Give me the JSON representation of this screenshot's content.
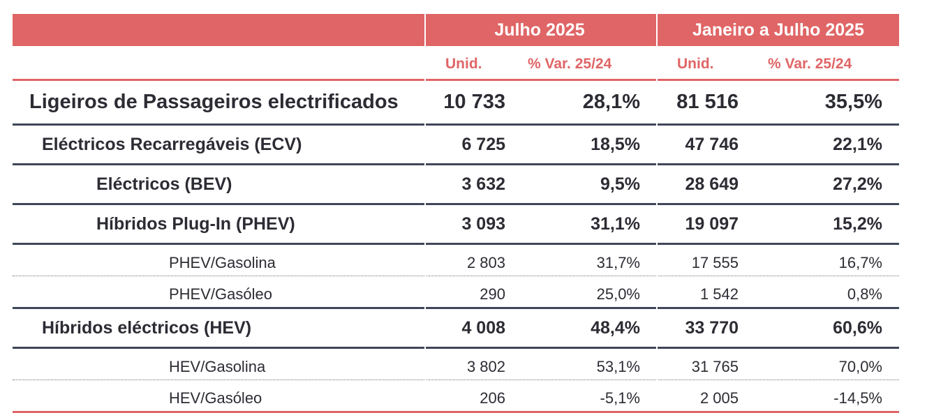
{
  "header": {
    "period1": "Julho 2025",
    "period2": "Janeiro a Julho 2025"
  },
  "subheader": {
    "unid1": "Unid.",
    "var1": "% Var. 25/24",
    "unid2": "Unid.",
    "var2": "% Var. 25/24"
  },
  "rows": [
    {
      "label": "Ligeiros de Passageiros electrificados",
      "jul_unid": "10 733",
      "jul_var": "28,1%",
      "ytd_unid": "81 516",
      "ytd_var": "35,5%"
    },
    {
      "label": "Eléctricos Recarregáveis (ECV)",
      "jul_unid": "6 725",
      "jul_var": "18,5%",
      "ytd_unid": "47 746",
      "ytd_var": "22,1%"
    },
    {
      "label": "Eléctricos (BEV)",
      "jul_unid": "3 632",
      "jul_var": "9,5%",
      "ytd_unid": "28 649",
      "ytd_var": "27,2%"
    },
    {
      "label": "Híbridos Plug-In (PHEV)",
      "jul_unid": "3 093",
      "jul_var": "31,1%",
      "ytd_unid": "19 097",
      "ytd_var": "15,2%"
    },
    {
      "label": "PHEV/Gasolina",
      "jul_unid": "2 803",
      "jul_var": "31,7%",
      "ytd_unid": "17 555",
      "ytd_var": "16,7%"
    },
    {
      "label": "PHEV/Gasóleo",
      "jul_unid": "290",
      "jul_var": "25,0%",
      "ytd_unid": "1 542",
      "ytd_var": "0,8%"
    },
    {
      "label": "Híbridos eléctricos (HEV)",
      "jul_unid": "4 008",
      "jul_var": "48,4%",
      "ytd_unid": "33 770",
      "ytd_var": "60,6%"
    },
    {
      "label": "HEV/Gasolina",
      "jul_unid": "3 802",
      "jul_var": "53,1%",
      "ytd_unid": "31 765",
      "ytd_var": "70,0%"
    },
    {
      "label": "HEV/Gasóleo",
      "jul_unid": "206",
      "jul_var": "-5,1%",
      "ytd_unid": "2 005",
      "ytd_var": "-14,5%"
    }
  ],
  "colors": {
    "accent": "#e06566",
    "rule": "#3f4659",
    "text": "#2c2c34"
  }
}
